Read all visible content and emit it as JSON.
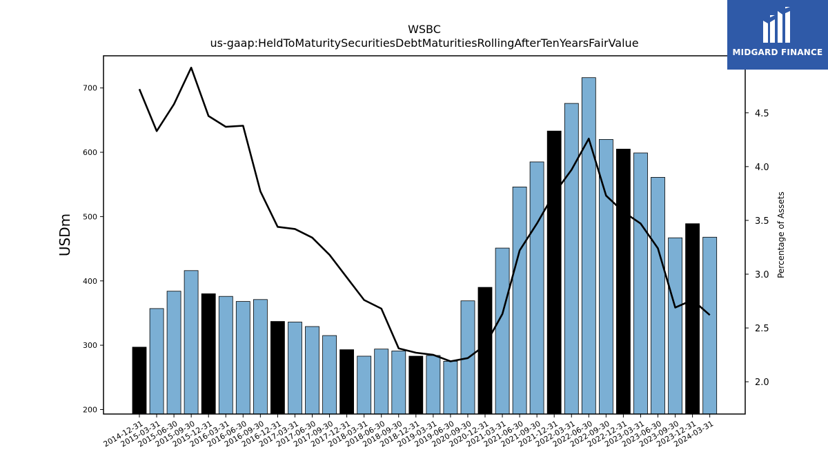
{
  "chart_data": {
    "type": "bar",
    "title": "WSBC",
    "subtitle": "us-gaap:HeldToMaturitySecuritiesDebtMaturitiesRollingAfterTenYearsFairValue",
    "ylabel_left": "USDm",
    "ylabel_right": "Percentage of Assets",
    "categories": [
      "2014-12-31",
      "2015-03-31",
      "2015-06-30",
      "2015-09-30",
      "2015-12-31",
      "2016-03-31",
      "2016-06-30",
      "2016-09-30",
      "2016-12-31",
      "2017-03-31",
      "2017-06-30",
      "2017-09-30",
      "2017-12-31",
      "2018-03-31",
      "2018-06-30",
      "2018-09-30",
      "2018-12-31",
      "2019-03-31",
      "2019-06-30",
      "2020-09-30",
      "2020-12-31",
      "2021-03-31",
      "2021-06-30",
      "2021-09-30",
      "2021-12-31",
      "2022-03-31",
      "2022-06-30",
      "2022-09-30",
      "2022-12-31",
      "2023-03-31",
      "2023-06-30",
      "2023-09-30",
      "2023-12-31",
      "2024-03-31"
    ],
    "series": [
      {
        "axis": "left",
        "type": "bar",
        "values": [
          297,
          357,
          384,
          416,
          380,
          376,
          368,
          371,
          337,
          336,
          329,
          315,
          293,
          283,
          294,
          291,
          283,
          284,
          275,
          369,
          390,
          451,
          546,
          585,
          633,
          676,
          716,
          620,
          605,
          599,
          561,
          467,
          489,
          468
        ],
        "highlight": [
          true,
          false,
          false,
          false,
          true,
          false,
          false,
          false,
          true,
          false,
          false,
          false,
          true,
          false,
          false,
          false,
          true,
          false,
          false,
          false,
          true,
          false,
          false,
          false,
          true,
          false,
          false,
          false,
          true,
          false,
          false,
          false,
          true,
          false
        ]
      },
      {
        "axis": "right",
        "type": "line",
        "values": [
          4.72,
          4.33,
          4.58,
          4.92,
          4.47,
          4.37,
          4.38,
          3.77,
          3.44,
          3.42,
          3.34,
          3.18,
          2.97,
          2.76,
          2.68,
          2.31,
          2.27,
          2.25,
          2.19,
          2.22,
          2.34,
          2.63,
          3.22,
          3.47,
          3.75,
          3.97,
          4.26,
          3.73,
          3.58,
          3.47,
          3.24,
          2.69,
          2.76,
          2.62
        ]
      }
    ],
    "ylim_left": [
      193,
      750
    ],
    "ylim_right": [
      1.7,
      5.03
    ],
    "yticks_left": [
      200,
      300,
      400,
      500,
      600,
      700
    ],
    "yticks_right": [
      2.0,
      2.5,
      3.0,
      3.5,
      4.0,
      4.5
    ],
    "colors": {
      "bar": "#7bafd4",
      "bar_highlight": "#000000",
      "line": "#000000"
    },
    "grid": false
  },
  "logo": {
    "text": "MIDGARD FINANCE",
    "icon": "midgard-logo-icon",
    "color": "#2f5aa8"
  }
}
